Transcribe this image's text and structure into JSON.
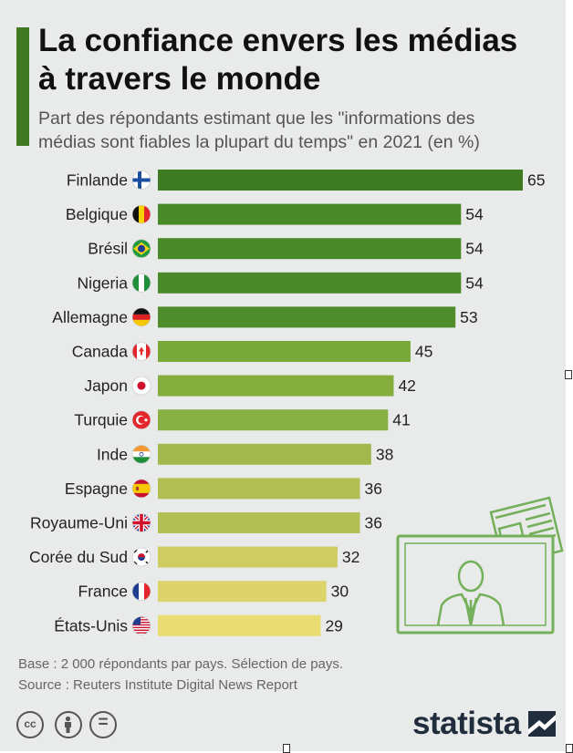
{
  "header": {
    "title_line1": "La confiance envers les médias",
    "title_line2": "à travers le monde",
    "subtitle_line1": "Part des répondants estimant que les \"informations des",
    "subtitle_line2": "médias sont fiables la plupart du temps\" en 2021 (en %)"
  },
  "chart_data": {
    "type": "bar",
    "orientation": "horizontal",
    "title": "La confiance envers les médias à travers le monde",
    "subtitle": "Part des répondants estimant que les \"informations des médias sont fiables la plupart du temps\" en 2021 (en %)",
    "categories": [
      "Finlande",
      "Belgique",
      "Brésil",
      "Nigeria",
      "Allemagne",
      "Canada",
      "Japon",
      "Turquie",
      "Inde",
      "Espagne",
      "Royaume-Uni",
      "Corée du Sud",
      "France",
      "États-Unis"
    ],
    "values": [
      65,
      54,
      54,
      54,
      53,
      45,
      42,
      41,
      38,
      36,
      36,
      32,
      30,
      29
    ],
    "flags": [
      "finland-flag",
      "belgium-flag",
      "brazil-flag",
      "nigeria-flag",
      "germany-flag",
      "canada-flag",
      "japan-flag",
      "turkey-flag",
      "india-flag",
      "spain-flag",
      "uk-flag",
      "south-korea-flag",
      "france-flag",
      "usa-flag"
    ],
    "bar_colors": [
      "#3d7a22",
      "#4a8a28",
      "#4a8a28",
      "#4a8a28",
      "#4f8d2c",
      "#78a83a",
      "#84ad3e",
      "#88b042",
      "#a2b84c",
      "#b2bf55",
      "#b2bf55",
      "#cfcc62",
      "#dcd36a",
      "#e8dc72"
    ],
    "xlim": [
      0,
      65
    ],
    "grid": false,
    "legend": "none"
  },
  "footer": {
    "base": "Base : 2 000 répondants par pays. Sélection de pays.",
    "source": "Source : Reuters Institute Digital News Report"
  },
  "license_icons": [
    "creative-commons-icon",
    "attribution-icon",
    "no-derivatives-icon"
  ],
  "license_labels": {
    "cc": "cc",
    "nd": "="
  },
  "brand": {
    "name": "statista",
    "color": "#1f2d3d"
  },
  "colors": {
    "accent": "#3f7a22",
    "background": "#e9ebea",
    "illustration": "#74b05a"
  }
}
